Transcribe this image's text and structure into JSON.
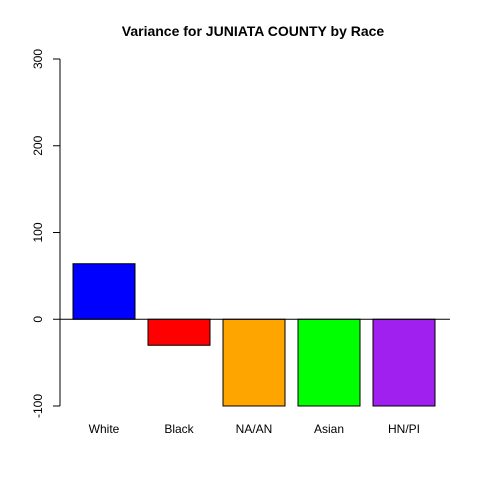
{
  "chart_data": {
    "type": "bar",
    "title": "Variance for JUNIATA COUNTY by Race",
    "xlabel": "",
    "ylabel": "",
    "categories": [
      "White",
      "Black",
      "NA/AN",
      "Asian",
      "HN/PI"
    ],
    "values": [
      64,
      -30,
      -100,
      -100,
      -100
    ],
    "colors": [
      "#0000FF",
      "#FF0000",
      "#FFA500",
      "#00FF00",
      "#A020F0"
    ],
    "ylim": [
      -100,
      300
    ],
    "yticks": [
      -100,
      0,
      100,
      200,
      300
    ],
    "ytick_labels": [
      "-100",
      "0",
      "100",
      "200",
      "300"
    ],
    "baseline": 0,
    "grid": false,
    "legend": "none"
  }
}
